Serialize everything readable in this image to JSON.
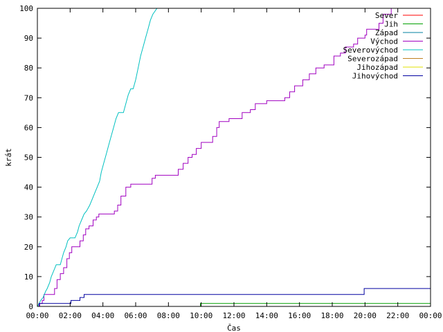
{
  "chart_data": {
    "type": "line",
    "title": "",
    "xlabel": "Čas",
    "ylabel": "krát",
    "xlim": [
      0,
      24
    ],
    "ylim": [
      0,
      100
    ],
    "x_ticks": [
      {
        "value": 0,
        "label": "00:00"
      },
      {
        "value": 2,
        "label": "02:00"
      },
      {
        "value": 4,
        "label": "04:00"
      },
      {
        "value": 6,
        "label": "06:00"
      },
      {
        "value": 8,
        "label": "08:00"
      },
      {
        "value": 10,
        "label": "10:00"
      },
      {
        "value": 12,
        "label": "12:00"
      },
      {
        "value": 14,
        "label": "14:00"
      },
      {
        "value": 16,
        "label": "16:00"
      },
      {
        "value": 18,
        "label": "18:00"
      },
      {
        "value": 20,
        "label": "20:00"
      },
      {
        "value": 22,
        "label": "22:00"
      },
      {
        "value": 24,
        "label": "00:00"
      }
    ],
    "y_ticks": [
      {
        "value": 0,
        "label": "0"
      },
      {
        "value": 10,
        "label": "10"
      },
      {
        "value": 20,
        "label": "20"
      },
      {
        "value": 30,
        "label": "30"
      },
      {
        "value": 40,
        "label": "40"
      },
      {
        "value": 50,
        "label": "50"
      },
      {
        "value": 60,
        "label": "60"
      },
      {
        "value": 70,
        "label": "70"
      },
      {
        "value": 80,
        "label": "80"
      },
      {
        "value": 90,
        "label": "90"
      },
      {
        "value": 100,
        "label": "100"
      }
    ],
    "grid": false,
    "legend_position": "top-right",
    "series": [
      {
        "name": "Sever",
        "color": "#ff0000",
        "points": []
      },
      {
        "name": "Jih",
        "color": "#00a000",
        "points": [
          [
            0,
            0
          ],
          [
            9.95,
            0
          ],
          [
            9.95,
            1
          ],
          [
            24,
            1
          ]
        ]
      },
      {
        "name": "Západ",
        "color": "#0080a0",
        "points": []
      },
      {
        "name": "Východ",
        "color": "#a000c0",
        "points": [
          [
            0,
            0
          ],
          [
            0.15,
            0
          ],
          [
            0.15,
            1
          ],
          [
            0.3,
            1
          ],
          [
            0.3,
            2
          ],
          [
            0.4,
            2
          ],
          [
            0.4,
            4
          ],
          [
            1.05,
            4
          ],
          [
            1.05,
            6
          ],
          [
            1.2,
            6
          ],
          [
            1.2,
            9
          ],
          [
            1.4,
            9
          ],
          [
            1.4,
            11
          ],
          [
            1.6,
            11
          ],
          [
            1.6,
            13
          ],
          [
            1.8,
            13
          ],
          [
            1.8,
            16
          ],
          [
            1.95,
            16
          ],
          [
            1.95,
            18
          ],
          [
            2.1,
            18
          ],
          [
            2.1,
            20
          ],
          [
            2.6,
            20
          ],
          [
            2.6,
            22
          ],
          [
            2.8,
            22
          ],
          [
            2.8,
            24
          ],
          [
            2.95,
            24
          ],
          [
            2.95,
            26
          ],
          [
            3.15,
            26
          ],
          [
            3.15,
            27
          ],
          [
            3.4,
            27
          ],
          [
            3.4,
            29
          ],
          [
            3.6,
            29
          ],
          [
            3.6,
            30
          ],
          [
            3.75,
            30
          ],
          [
            3.75,
            31
          ],
          [
            4.7,
            31
          ],
          [
            4.7,
            32
          ],
          [
            4.9,
            32
          ],
          [
            4.9,
            34
          ],
          [
            5.1,
            34
          ],
          [
            5.1,
            37
          ],
          [
            5.4,
            37
          ],
          [
            5.4,
            40
          ],
          [
            5.7,
            40
          ],
          [
            5.7,
            41
          ],
          [
            7.0,
            41
          ],
          [
            7.0,
            43
          ],
          [
            7.2,
            43
          ],
          [
            7.2,
            44
          ],
          [
            8.6,
            44
          ],
          [
            8.6,
            46
          ],
          [
            8.9,
            46
          ],
          [
            8.9,
            48
          ],
          [
            9.2,
            48
          ],
          [
            9.2,
            50
          ],
          [
            9.45,
            50
          ],
          [
            9.45,
            51
          ],
          [
            9.7,
            51
          ],
          [
            9.7,
            53
          ],
          [
            10.0,
            53
          ],
          [
            10.0,
            55
          ],
          [
            10.7,
            55
          ],
          [
            10.7,
            57
          ],
          [
            10.95,
            57
          ],
          [
            10.95,
            60
          ],
          [
            11.1,
            60
          ],
          [
            11.1,
            62
          ],
          [
            11.7,
            62
          ],
          [
            11.7,
            63
          ],
          [
            12.5,
            63
          ],
          [
            12.5,
            65
          ],
          [
            13.0,
            65
          ],
          [
            13.0,
            66
          ],
          [
            13.3,
            66
          ],
          [
            13.3,
            68
          ],
          [
            14.0,
            68
          ],
          [
            14.0,
            69
          ],
          [
            15.1,
            69
          ],
          [
            15.1,
            70
          ],
          [
            15.4,
            70
          ],
          [
            15.4,
            72
          ],
          [
            15.7,
            72
          ],
          [
            15.7,
            74
          ],
          [
            16.2,
            74
          ],
          [
            16.2,
            76
          ],
          [
            16.6,
            76
          ],
          [
            16.6,
            78
          ],
          [
            17.0,
            78
          ],
          [
            17.0,
            80
          ],
          [
            17.5,
            80
          ],
          [
            17.5,
            81
          ],
          [
            18.1,
            81
          ],
          [
            18.1,
            84
          ],
          [
            18.5,
            84
          ],
          [
            18.5,
            85
          ],
          [
            18.8,
            85
          ],
          [
            18.8,
            87
          ],
          [
            19.3,
            87
          ],
          [
            19.3,
            88
          ],
          [
            19.55,
            88
          ],
          [
            19.55,
            90
          ],
          [
            20.0,
            90
          ],
          [
            20.0,
            91
          ],
          [
            20.1,
            91
          ],
          [
            20.1,
            93
          ],
          [
            20.85,
            93
          ],
          [
            20.85,
            95
          ],
          [
            21.1,
            95
          ],
          [
            21.1,
            98
          ],
          [
            21.6,
            98
          ],
          [
            21.6,
            100
          ]
        ]
      },
      {
        "name": "Severovýchod",
        "color": "#00c0c0",
        "points": [
          [
            0,
            0
          ],
          [
            0.1,
            1
          ],
          [
            0.2,
            2
          ],
          [
            0.35,
            3
          ],
          [
            0.5,
            5
          ],
          [
            0.6,
            6
          ],
          [
            0.75,
            8
          ],
          [
            0.85,
            10
          ],
          [
            1.0,
            12
          ],
          [
            1.15,
            14
          ],
          [
            1.4,
            14
          ],
          [
            1.5,
            16
          ],
          [
            1.6,
            18
          ],
          [
            1.75,
            20
          ],
          [
            1.85,
            22
          ],
          [
            2.0,
            23
          ],
          [
            2.3,
            23
          ],
          [
            2.45,
            25
          ],
          [
            2.55,
            27
          ],
          [
            2.7,
            29
          ],
          [
            2.85,
            31
          ],
          [
            3.0,
            32
          ],
          [
            3.2,
            34
          ],
          [
            3.35,
            36
          ],
          [
            3.5,
            38
          ],
          [
            3.65,
            40
          ],
          [
            3.8,
            42
          ],
          [
            3.9,
            45
          ],
          [
            4.05,
            48
          ],
          [
            4.2,
            51
          ],
          [
            4.35,
            54
          ],
          [
            4.5,
            57
          ],
          [
            4.65,
            60
          ],
          [
            4.8,
            63
          ],
          [
            4.95,
            65
          ],
          [
            5.25,
            65
          ],
          [
            5.4,
            68
          ],
          [
            5.55,
            71
          ],
          [
            5.7,
            73
          ],
          [
            5.85,
            73
          ],
          [
            6.0,
            76
          ],
          [
            6.15,
            80
          ],
          [
            6.3,
            84
          ],
          [
            6.45,
            87
          ],
          [
            6.6,
            90
          ],
          [
            6.75,
            93
          ],
          [
            6.9,
            96
          ],
          [
            7.05,
            98
          ],
          [
            7.3,
            100
          ]
        ]
      },
      {
        "name": "Severozápad",
        "color": "#c08020",
        "points": []
      },
      {
        "name": "Jihozápad",
        "color": "#e0e000",
        "points": []
      },
      {
        "name": "Jihovýchod",
        "color": "#0000a0",
        "points": [
          [
            0,
            0
          ],
          [
            0.1,
            0
          ],
          [
            0.1,
            1
          ],
          [
            2.05,
            1
          ],
          [
            2.05,
            2
          ],
          [
            2.6,
            2
          ],
          [
            2.6,
            3
          ],
          [
            2.85,
            3
          ],
          [
            2.85,
            4
          ],
          [
            19.95,
            4
          ],
          [
            19.95,
            6
          ],
          [
            24,
            6
          ]
        ]
      }
    ]
  }
}
